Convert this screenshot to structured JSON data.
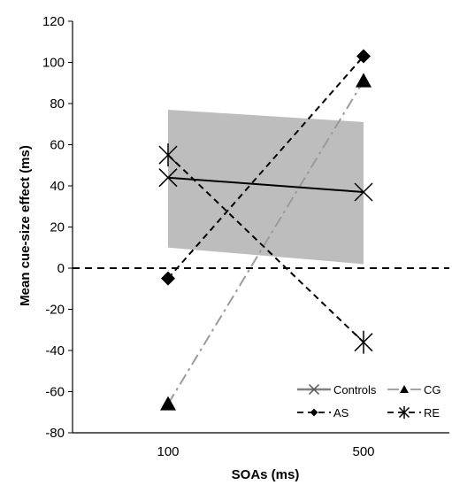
{
  "chart_data": {
    "type": "line",
    "title": "",
    "xlabel": "SOAs (ms)",
    "ylabel": "Mean cue-size effect (ms)",
    "categories": [
      "100",
      "500"
    ],
    "ylim": [
      -80,
      120
    ],
    "yticks": [
      -80,
      -60,
      -40,
      -20,
      0,
      20,
      40,
      60,
      80,
      100,
      120
    ],
    "grid": false,
    "legend_position": "bottom-right",
    "reference_line": {
      "y": 0,
      "style": "dashed",
      "color": "#000000"
    },
    "band": {
      "series": "Controls",
      "lower": [
        10,
        2
      ],
      "upper": [
        77,
        71
      ],
      "color": "#bdbdbd"
    },
    "series": [
      {
        "name": "Controls",
        "values": [
          44,
          37
        ],
        "marker": "x",
        "line_style": "solid",
        "color": "#000000",
        "legend_color": "#808080"
      },
      {
        "name": "CG",
        "values": [
          -66,
          91
        ],
        "marker": "triangle",
        "line_style": "dashdot",
        "color": "#9a9a9a"
      },
      {
        "name": "AS",
        "values": [
          -5,
          103
        ],
        "marker": "diamond",
        "line_style": "dashed",
        "color": "#000000"
      },
      {
        "name": "RE",
        "values": [
          55,
          -36
        ],
        "marker": "asterisk",
        "line_style": "dashed",
        "color": "#000000"
      }
    ]
  }
}
